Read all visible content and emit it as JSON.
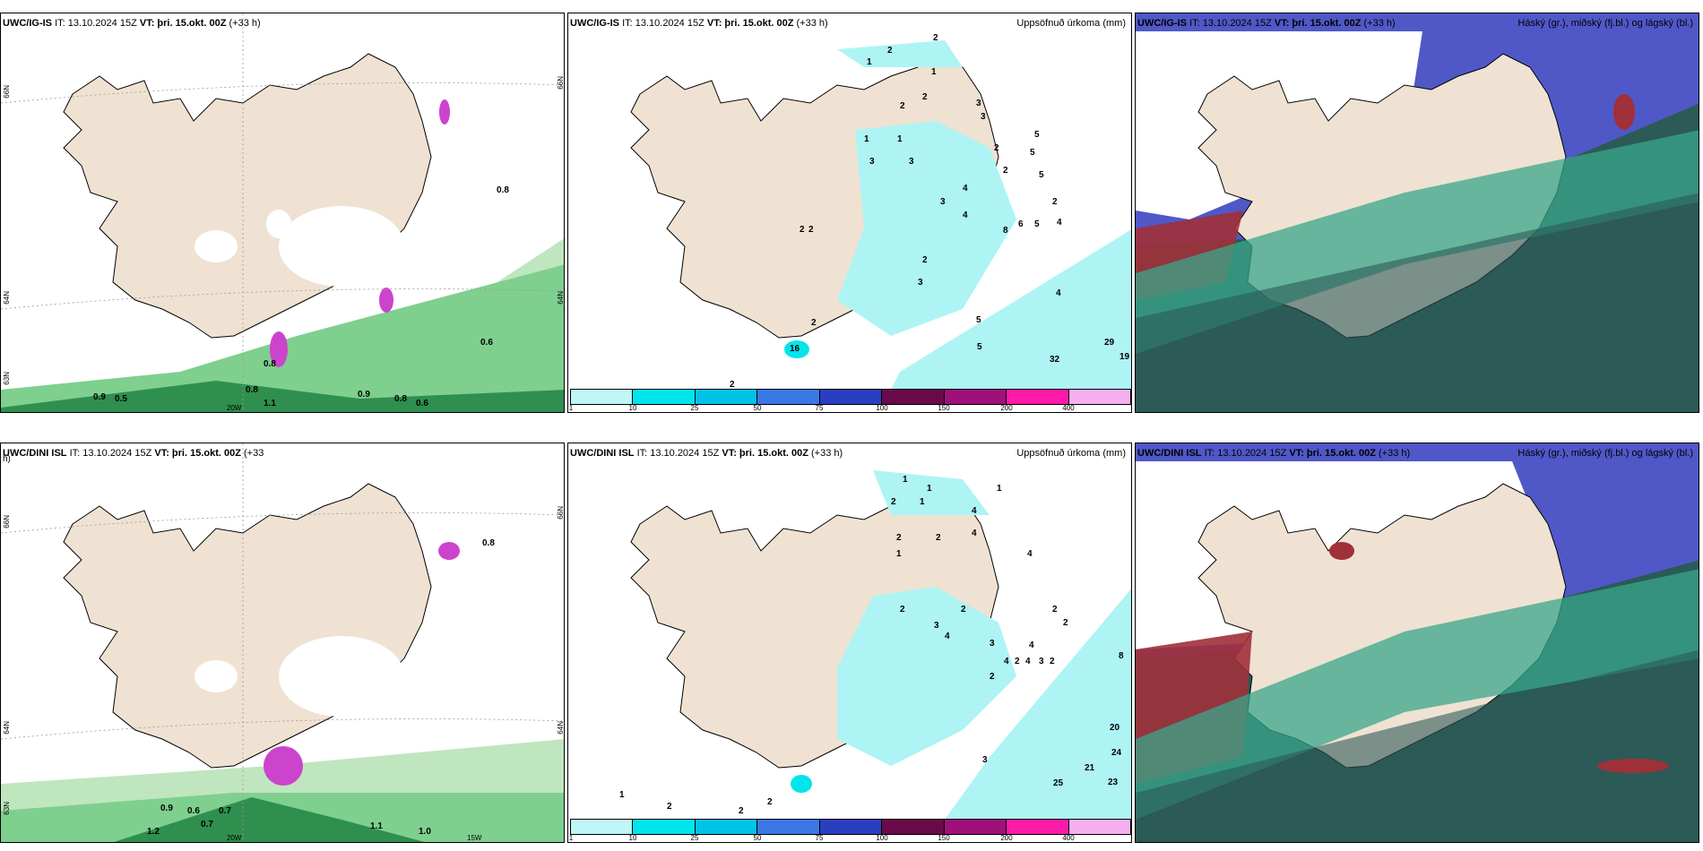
{
  "colors": {
    "land": "#efe2d2",
    "ocean": "#ffffff",
    "precip_light": "#aef4f4",
    "precip_cyan": "#00e5ec",
    "green_light": "#bfe6bf",
    "green_mid": "#7fcf8f",
    "green_dark": "#2f8f4f",
    "cloud_high_blue": "#5058c8",
    "cloud_mid_green": "#3aa58a",
    "cloud_low_dark": "#2b5a57",
    "cloud_red": "#a0303a",
    "magenta": "#cc44cc"
  },
  "panels": [
    {
      "title_model": "UWC/IG-IS",
      "title_it": "IT: 13.10.2024 15Z",
      "title_vt_label": "VT:",
      "title_vt": "þri. 15.okt. 00Z",
      "title_lead": "(+33 h)",
      "type": "wind",
      "labels": [
        "0.8",
        "0.6",
        "0.9",
        "0.5",
        "0.8",
        "1.1",
        "0.9",
        "0.8",
        "0.6",
        "0.8"
      ],
      "lat_labels": [
        "66N",
        "64N",
        "63N",
        "66N",
        "64N"
      ],
      "lon_labels": [
        "20W"
      ]
    },
    {
      "title_model": "UWC/IG-IS",
      "title_it": "IT: 13.10.2024 15Z",
      "title_vt_label": "VT:",
      "title_vt": "þri. 15.okt. 00Z",
      "title_lead": "(+33 h)",
      "title_right": "Uppsöfnuð úrkoma (mm)",
      "type": "precip",
      "labels": [
        "2",
        "1",
        "2",
        "5",
        "1",
        "2",
        "2",
        "3",
        "3",
        "1",
        "3",
        "1",
        "3",
        "2",
        "4",
        "5",
        "3",
        "2",
        "5",
        "4",
        "8",
        "6",
        "5",
        "2",
        "4",
        "2",
        "3",
        "2",
        "2",
        "5",
        "29",
        "19",
        "32",
        "5",
        "4",
        "2",
        "16",
        "2"
      ]
    },
    {
      "title_model": "UWC/IG-IS",
      "title_it": "IT: 13.10.2024 15Z",
      "title_vt_label": "VT:",
      "title_vt": "þri. 15.okt. 00Z",
      "title_lead": "(+33 h)",
      "title_right": "Háský (gr.), miðský (fj.bl.) og lágský (bl.)",
      "type": "cloud"
    },
    {
      "title_model": "UWC/DINI ISL",
      "title_it": "IT: 13.10.2024 15Z",
      "title_vt_label": "VT:",
      "title_vt": "þri. 15.okt. 00Z",
      "title_lead": "(+33",
      "title_wrap": "h)",
      "type": "wind",
      "labels": [
        "0.8",
        "0.9",
        "0.6",
        "0.7",
        "0.7",
        "1.2",
        "1.0",
        "1.1"
      ],
      "lat_labels": [
        "66N",
        "64N",
        "63N",
        "66N",
        "64N"
      ],
      "lon_labels": [
        "20W",
        "15W"
      ]
    },
    {
      "title_model": "UWC/DINI ISL",
      "title_it": "IT: 13.10.2024 15Z",
      "title_vt_label": "VT:",
      "title_vt": "þri. 15.okt. 00Z",
      "title_lead": "(+33 h)",
      "title_right": "Uppsöfnuð úrkoma (mm)",
      "type": "precip",
      "labels": [
        "1",
        "1",
        "1",
        "2",
        "1",
        "4",
        "2",
        "2",
        "4",
        "4",
        "1",
        "2",
        "2",
        "4",
        "3",
        "3",
        "4",
        "2",
        "2",
        "4",
        "3",
        "2",
        "4",
        "2",
        "8",
        "2",
        "20",
        "24",
        "21",
        "23",
        "25",
        "3",
        "1",
        "2",
        "2",
        "2"
      ]
    },
    {
      "title_model": "UWC/DINI ISL",
      "title_it": "IT: 13.10.2024 15Z",
      "title_vt_label": "VT:",
      "title_vt": "þri. 15.okt. 00Z",
      "title_lead": "(+33 h)",
      "title_right": "Háský (gr.), miðský (fj.bl.) og lágský (bl.)",
      "type": "cloud"
    }
  ],
  "colorbar": {
    "ticks": [
      "1",
      "10",
      "25",
      "50",
      "75",
      "100",
      "150",
      "200",
      "400"
    ],
    "swatches": [
      "#bff6f6",
      "#00e5ec",
      "#00c3e8",
      "#3a78e6",
      "#2a3fc0",
      "#6a0a4a",
      "#a0107a",
      "#ff1aa8",
      "#f6b0f0"
    ]
  }
}
